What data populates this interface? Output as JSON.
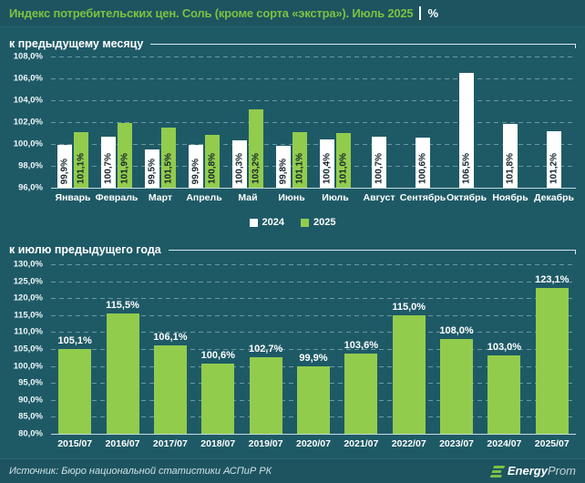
{
  "header": {
    "title": "Индекс потребительских цен. Соль (кроме сорта «экстра»). Июль 2025",
    "unit": "%"
  },
  "legend": {
    "items": [
      {
        "label": "2024",
        "color": "#ffffff"
      },
      {
        "label": "2025",
        "color": "#92cc4d"
      }
    ]
  },
  "footer": {
    "source": "Источник: Бюро национальной статистики АСПиР РК",
    "logo": {
      "bold": "Energy",
      "light": "Prom"
    }
  },
  "colors": {
    "background": "#1e5a66",
    "band": "#1d545f",
    "accent_green": "#7dc142",
    "bar_green": "#92cc4d",
    "bar_white": "#ffffff",
    "gridline": "#c8e3e9",
    "bar_label_dark": "#16262e"
  },
  "chart_data": [
    {
      "type": "bar",
      "title": "к предыдущему месяцу",
      "label_position": "inside-rotated",
      "grid": "dashed-horizontal",
      "legend_position": "bottom",
      "categories": [
        "Январь",
        "Февраль",
        "Март",
        "Апрель",
        "Май",
        "Июнь",
        "Июль",
        "Август",
        "Сентябрь",
        "Октябрь",
        "Ноябрь",
        "Декабрь"
      ],
      "series": [
        {
          "name": "2024",
          "color": "#ffffff",
          "values": [
            99.9,
            100.7,
            99.5,
            99.9,
            100.3,
            99.8,
            100.4,
            100.7,
            100.6,
            106.5,
            101.8,
            101.2
          ],
          "labels": [
            "99,9%",
            "100,7%",
            "99,5%",
            "99,9%",
            "100,3%",
            "99,8%",
            "100,4%",
            "100,7%",
            "100,6%",
            "106,5%",
            "101,8%",
            "101,2%"
          ]
        },
        {
          "name": "2025",
          "color": "#92cc4d",
          "values": [
            101.1,
            101.9,
            101.5,
            100.8,
            103.2,
            101.1,
            101.0,
            null,
            null,
            null,
            null,
            null
          ],
          "labels": [
            "101,1%",
            "101,9%",
            "101,5%",
            "100,8%",
            "103,2%",
            "101,1%",
            "101,0%",
            null,
            null,
            null,
            null,
            null
          ]
        }
      ],
      "ylim": [
        96,
        108
      ],
      "yticks": [
        "96,0%",
        "98,0%",
        "100,0%",
        "102,0%",
        "104,0%",
        "106,0%",
        "108,0%"
      ]
    },
    {
      "type": "bar",
      "title": "к июлю предыдущего года",
      "label_position": "above",
      "grid": "dashed-horizontal",
      "legend_position": "none",
      "categories": [
        "2015/07",
        "2016/07",
        "2017/07",
        "2018/07",
        "2019/07",
        "2020/07",
        "2021/07",
        "2022/07",
        "2023/07",
        "2024/07",
        "2025/07"
      ],
      "series": [
        {
          "name": "к июлю предыдущего года",
          "color": "#92cc4d",
          "values": [
            105.1,
            115.5,
            106.1,
            100.6,
            102.7,
            99.9,
            103.6,
            115.0,
            108.0,
            103.0,
            123.1
          ],
          "labels": [
            "105,1%",
            "115,5%",
            "106,1%",
            "100,6%",
            "102,7%",
            "99,9%",
            "103,6%",
            "115,0%",
            "108,0%",
            "103,0%",
            "123,1%"
          ]
        }
      ],
      "ylim": [
        80,
        130
      ],
      "yticks": [
        "80,0%",
        "85,0%",
        "90,0%",
        "95,0%",
        "100,0%",
        "105,0%",
        "110,0%",
        "115,0%",
        "120,0%",
        "125,0%",
        "130,0%"
      ]
    }
  ]
}
